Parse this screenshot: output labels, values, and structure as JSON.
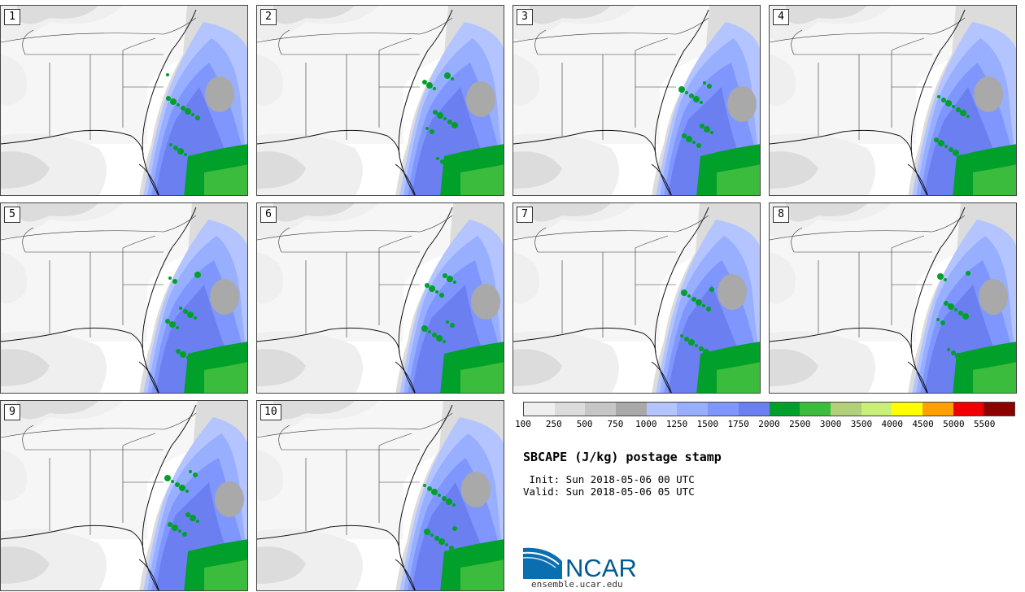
{
  "panels": [
    {
      "label": "1"
    },
    {
      "label": "2"
    },
    {
      "label": "3"
    },
    {
      "label": "4"
    },
    {
      "label": "5"
    },
    {
      "label": "6"
    },
    {
      "label": "7"
    },
    {
      "label": "8"
    },
    {
      "label": "9"
    },
    {
      "label": "10"
    }
  ],
  "colorbar": {
    "colors": [
      "#efefef",
      "#dcdcdc",
      "#c6c6c6",
      "#a9a9a9",
      "#b4c4ff",
      "#98aeff",
      "#7f96ff",
      "#6c7ff0",
      "#00a02a",
      "#3cbc3c",
      "#b2d07a",
      "#c8f078",
      "#ffff00",
      "#ffa000",
      "#f00000",
      "#8c0000"
    ],
    "ticks": [
      "100",
      "250",
      "500",
      "750",
      "1000",
      "1250",
      "1500",
      "1750",
      "2000",
      "2500",
      "3000",
      "3500",
      "4000",
      "4500",
      "5000",
      "5500"
    ]
  },
  "title": "SBCAPE (J/kg) postage stamp",
  "init_line": " Init: Sun 2018-05-06 00 UTC",
  "valid_line": "Valid: Sun 2018-05-06 05 UTC",
  "logo": {
    "text": "NCAR",
    "url": "ensemble.ucar.edu"
  }
}
